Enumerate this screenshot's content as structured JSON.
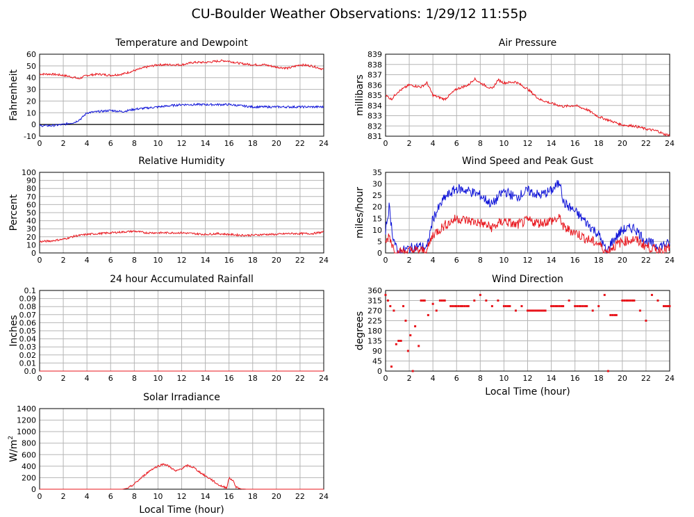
{
  "page": {
    "title": "CU-Boulder Weather Observations: 1/29/12 11:55p"
  },
  "colors": {
    "red": "#e8141b",
    "blue": "#0f14d8",
    "grid": "#b5b5b5"
  },
  "chart_data": [
    {
      "id": "temp",
      "type": "line",
      "title": "Temperature and Dewpoint",
      "ylabel": "Fahrenheit",
      "xlabel": "",
      "xlim": [
        0,
        24
      ],
      "ylim": [
        -10,
        60
      ],
      "xticks": [
        "0",
        "2",
        "4",
        "6",
        "8",
        "10",
        "12",
        "14",
        "16",
        "18",
        "20",
        "22",
        "24"
      ],
      "yticks": [
        "-10",
        "0",
        "10",
        "20",
        "30",
        "40",
        "50",
        "60"
      ],
      "series": [
        {
          "name": "Temperature",
          "color": "red",
          "x": [
            0,
            1,
            2,
            3,
            3.3,
            4,
            5,
            6,
            7,
            8,
            9,
            10,
            11,
            12,
            13,
            14,
            15,
            15.5,
            16,
            17,
            18,
            19,
            20,
            21,
            22,
            23,
            24
          ],
          "y": [
            43,
            43,
            42,
            40,
            39,
            42,
            43,
            42,
            43,
            46,
            49,
            51,
            51,
            51,
            53,
            53,
            54,
            54.5,
            54,
            52,
            51,
            51,
            49,
            48,
            51,
            50,
            47
          ]
        },
        {
          "name": "Dewpoint",
          "color": "blue",
          "x": [
            0,
            1,
            2,
            3,
            3.5,
            4,
            5,
            6,
            7,
            8,
            9,
            10,
            11,
            12,
            13,
            14,
            15,
            16,
            17,
            18,
            19,
            20,
            21,
            22,
            23,
            24
          ],
          "y": [
            -1,
            -1,
            0,
            2,
            5,
            10,
            11,
            12,
            11,
            13,
            14,
            15,
            16,
            17,
            17,
            17,
            17,
            17,
            16,
            15,
            15,
            15,
            15,
            15,
            15,
            15
          ]
        }
      ]
    },
    {
      "id": "pressure",
      "type": "line",
      "title": "Air Pressure",
      "ylabel": "millibars",
      "xlabel": "",
      "xlim": [
        0,
        24
      ],
      "ylim": [
        831,
        839
      ],
      "xticks": [
        "0",
        "2",
        "4",
        "6",
        "8",
        "10",
        "12",
        "14",
        "16",
        "18",
        "20",
        "22",
        "24"
      ],
      "yticks": [
        "831",
        "832",
        "833",
        "834",
        "835",
        "836",
        "837",
        "838",
        "839"
      ],
      "series": [
        {
          "name": "Pressure",
          "color": "red",
          "x": [
            0,
            0.5,
            1,
            2,
            3,
            3.5,
            4,
            5,
            6,
            7,
            7.5,
            8,
            9,
            9.5,
            10,
            11,
            12,
            13,
            14,
            15,
            16,
            17,
            18,
            19,
            20,
            21,
            22,
            23,
            23.5,
            24
          ],
          "y": [
            835,
            834.6,
            835.3,
            836,
            835.8,
            836.2,
            835,
            834.6,
            835.6,
            836,
            836.6,
            836.2,
            835.6,
            836.5,
            836.2,
            836.3,
            835.6,
            834.6,
            834.2,
            833.9,
            834,
            833.6,
            832.9,
            832.5,
            832.1,
            832,
            831.7,
            831.5,
            831.2,
            831.1
          ]
        }
      ]
    },
    {
      "id": "humidity",
      "type": "line",
      "title": "Relative Humidity",
      "ylabel": "Percent",
      "xlabel": "",
      "xlim": [
        0,
        24
      ],
      "ylim": [
        0,
        100
      ],
      "xticks": [
        "0",
        "2",
        "4",
        "6",
        "8",
        "10",
        "12",
        "14",
        "16",
        "18",
        "20",
        "22",
        "24"
      ],
      "yticks": [
        "0",
        "10",
        "20",
        "30",
        "40",
        "50",
        "60",
        "70",
        "80",
        "90",
        "100"
      ],
      "series": [
        {
          "name": "Relative Humidity",
          "color": "red",
          "x": [
            0,
            1,
            2,
            3,
            4,
            5,
            6,
            7,
            8,
            9,
            10,
            11,
            12,
            13,
            14,
            15,
            16,
            17,
            18,
            19,
            20,
            21,
            22,
            23,
            24
          ],
          "y": [
            14,
            15,
            17,
            21,
            23,
            24,
            25,
            26,
            27,
            25,
            25,
            25,
            25,
            24,
            23,
            24,
            23,
            22,
            22,
            23,
            23,
            24,
            24,
            24,
            26
          ]
        }
      ]
    },
    {
      "id": "wind",
      "type": "line",
      "title": "Wind Speed and Peak Gust",
      "ylabel": "miles/hour",
      "xlabel": "",
      "xlim": [
        0,
        24
      ],
      "ylim": [
        0,
        35
      ],
      "xticks": [
        "0",
        "2",
        "4",
        "6",
        "8",
        "10",
        "12",
        "14",
        "16",
        "18",
        "20",
        "22",
        "24"
      ],
      "yticks": [
        "0",
        "5",
        "10",
        "15",
        "20",
        "25",
        "30",
        "35"
      ],
      "series": [
        {
          "name": "Peak Gust",
          "color": "blue",
          "x": [
            0,
            0.3,
            0.6,
            1,
            2,
            3,
            3.5,
            4,
            5,
            6,
            7,
            8,
            9,
            10,
            11,
            12,
            13,
            14,
            14.8,
            15,
            16,
            17,
            18,
            18.7,
            19,
            20,
            21,
            22,
            23,
            24
          ],
          "y": [
            10,
            20,
            8,
            0,
            2,
            3,
            2,
            15,
            24,
            28,
            27,
            25,
            21,
            27,
            24,
            27,
            25,
            27,
            31,
            22,
            18,
            13,
            8,
            0,
            4,
            10,
            11,
            5,
            3,
            4
          ]
        },
        {
          "name": "Wind Speed",
          "color": "red",
          "x": [
            0,
            0.3,
            0.6,
            1,
            2,
            3,
            3.5,
            4,
            5,
            6,
            7,
            8,
            9,
            10,
            11,
            12,
            13,
            14,
            14.8,
            15,
            16,
            17,
            18,
            18.7,
            19,
            20,
            21,
            22,
            23,
            24
          ],
          "y": [
            4,
            8,
            3,
            0,
            1,
            1,
            1,
            8,
            12,
            15,
            14,
            13,
            11,
            14,
            12,
            14,
            13,
            14,
            15,
            11,
            9,
            6,
            4,
            0,
            2,
            5,
            6,
            3,
            1,
            2
          ]
        }
      ]
    },
    {
      "id": "rain",
      "type": "line",
      "title": "24 hour Accumulated Rainfall",
      "ylabel": "Inches",
      "xlabel": "",
      "xlim": [
        0,
        24
      ],
      "ylim": [
        0,
        0.1
      ],
      "xticks": [
        "0",
        "2",
        "4",
        "6",
        "8",
        "10",
        "12",
        "14",
        "16",
        "18",
        "20",
        "22",
        "24"
      ],
      "yticks": [
        "0.0",
        "0.01",
        "0.02",
        "0.03",
        "0.04",
        "0.05",
        "0.06",
        "0.07",
        "0.08",
        "0.09",
        "0.1"
      ],
      "series": [
        {
          "name": "Rainfall",
          "color": "red",
          "x": [
            0,
            24
          ],
          "y": [
            0,
            0
          ]
        }
      ]
    },
    {
      "id": "direction",
      "type": "scatter",
      "title": "Wind Direction",
      "ylabel": "degrees",
      "xlabel": "Local Time (hour)",
      "xlim": [
        0,
        24
      ],
      "ylim": [
        0,
        360
      ],
      "xticks": [
        "0",
        "2",
        "4",
        "6",
        "8",
        "10",
        "12",
        "14",
        "16",
        "18",
        "20",
        "22",
        "24"
      ],
      "yticks": [
        "0",
        "45",
        "90",
        "135",
        "180",
        "225",
        "270",
        "315",
        "360"
      ],
      "series": [
        {
          "name": "Wind Direction",
          "color": "red",
          "x": [
            0,
            0.2,
            0.4,
            0.5,
            0.7,
            0.9,
            1.1,
            1.3,
            1.5,
            1.7,
            1.9,
            2.1,
            2.3,
            2.5,
            2.8,
            3,
            3.3,
            3.6,
            4,
            4.3,
            4.6,
            5,
            5.5,
            6,
            6.5,
            7,
            7.5,
            8,
            8.5,
            9,
            9.5,
            10,
            10.5,
            11,
            11.5,
            12,
            12.5,
            13,
            13.5,
            14,
            14.5,
            15,
            15.5,
            16,
            16.5,
            17,
            17.5,
            18,
            18.5,
            18.8,
            19,
            19.5,
            20,
            20.5,
            21,
            21.5,
            22,
            22.5,
            23,
            23.5,
            24
          ],
          "y": [
            340,
            315,
            290,
            20,
            270,
            120,
            135,
            135,
            290,
            225,
            90,
            160,
            0,
            200,
            112,
            315,
            315,
            250,
            300,
            270,
            315,
            315,
            290,
            290,
            290,
            290,
            315,
            340,
            315,
            290,
            315,
            290,
            290,
            270,
            290,
            270,
            270,
            270,
            270,
            290,
            290,
            290,
            315,
            290,
            290,
            290,
            270,
            290,
            340,
            0,
            250,
            250,
            315,
            315,
            315,
            270,
            225,
            340,
            315,
            290,
            290
          ]
        }
      ]
    },
    {
      "id": "solar",
      "type": "area",
      "title": "Solar Irradiance",
      "ylabel": "W/m2",
      "ylabel_base": "W/m",
      "ylabel_sup": "2",
      "xlabel": "Local Time (hour)",
      "xlim": [
        0,
        24
      ],
      "ylim": [
        0,
        1400
      ],
      "xticks": [
        "0",
        "2",
        "4",
        "6",
        "8",
        "10",
        "12",
        "14",
        "16",
        "18",
        "20",
        "22",
        "24"
      ],
      "yticks": [
        "0",
        "200",
        "400",
        "600",
        "800",
        "1000",
        "1200",
        "1400"
      ],
      "series": [
        {
          "name": "Solar Irradiance",
          "color": "red",
          "x": [
            0,
            7,
            7.5,
            8,
            8.5,
            9,
            9.5,
            10,
            10.5,
            11,
            11.5,
            12,
            12.5,
            13,
            13.5,
            14,
            14.5,
            15,
            15.5,
            15.8,
            16,
            16.3,
            16.6,
            17,
            17.5,
            24
          ],
          "y": [
            0,
            0,
            20,
            90,
            180,
            270,
            350,
            400,
            440,
            390,
            310,
            360,
            410,
            380,
            300,
            230,
            170,
            90,
            40,
            30,
            190,
            160,
            40,
            5,
            0,
            0
          ]
        }
      ]
    }
  ]
}
